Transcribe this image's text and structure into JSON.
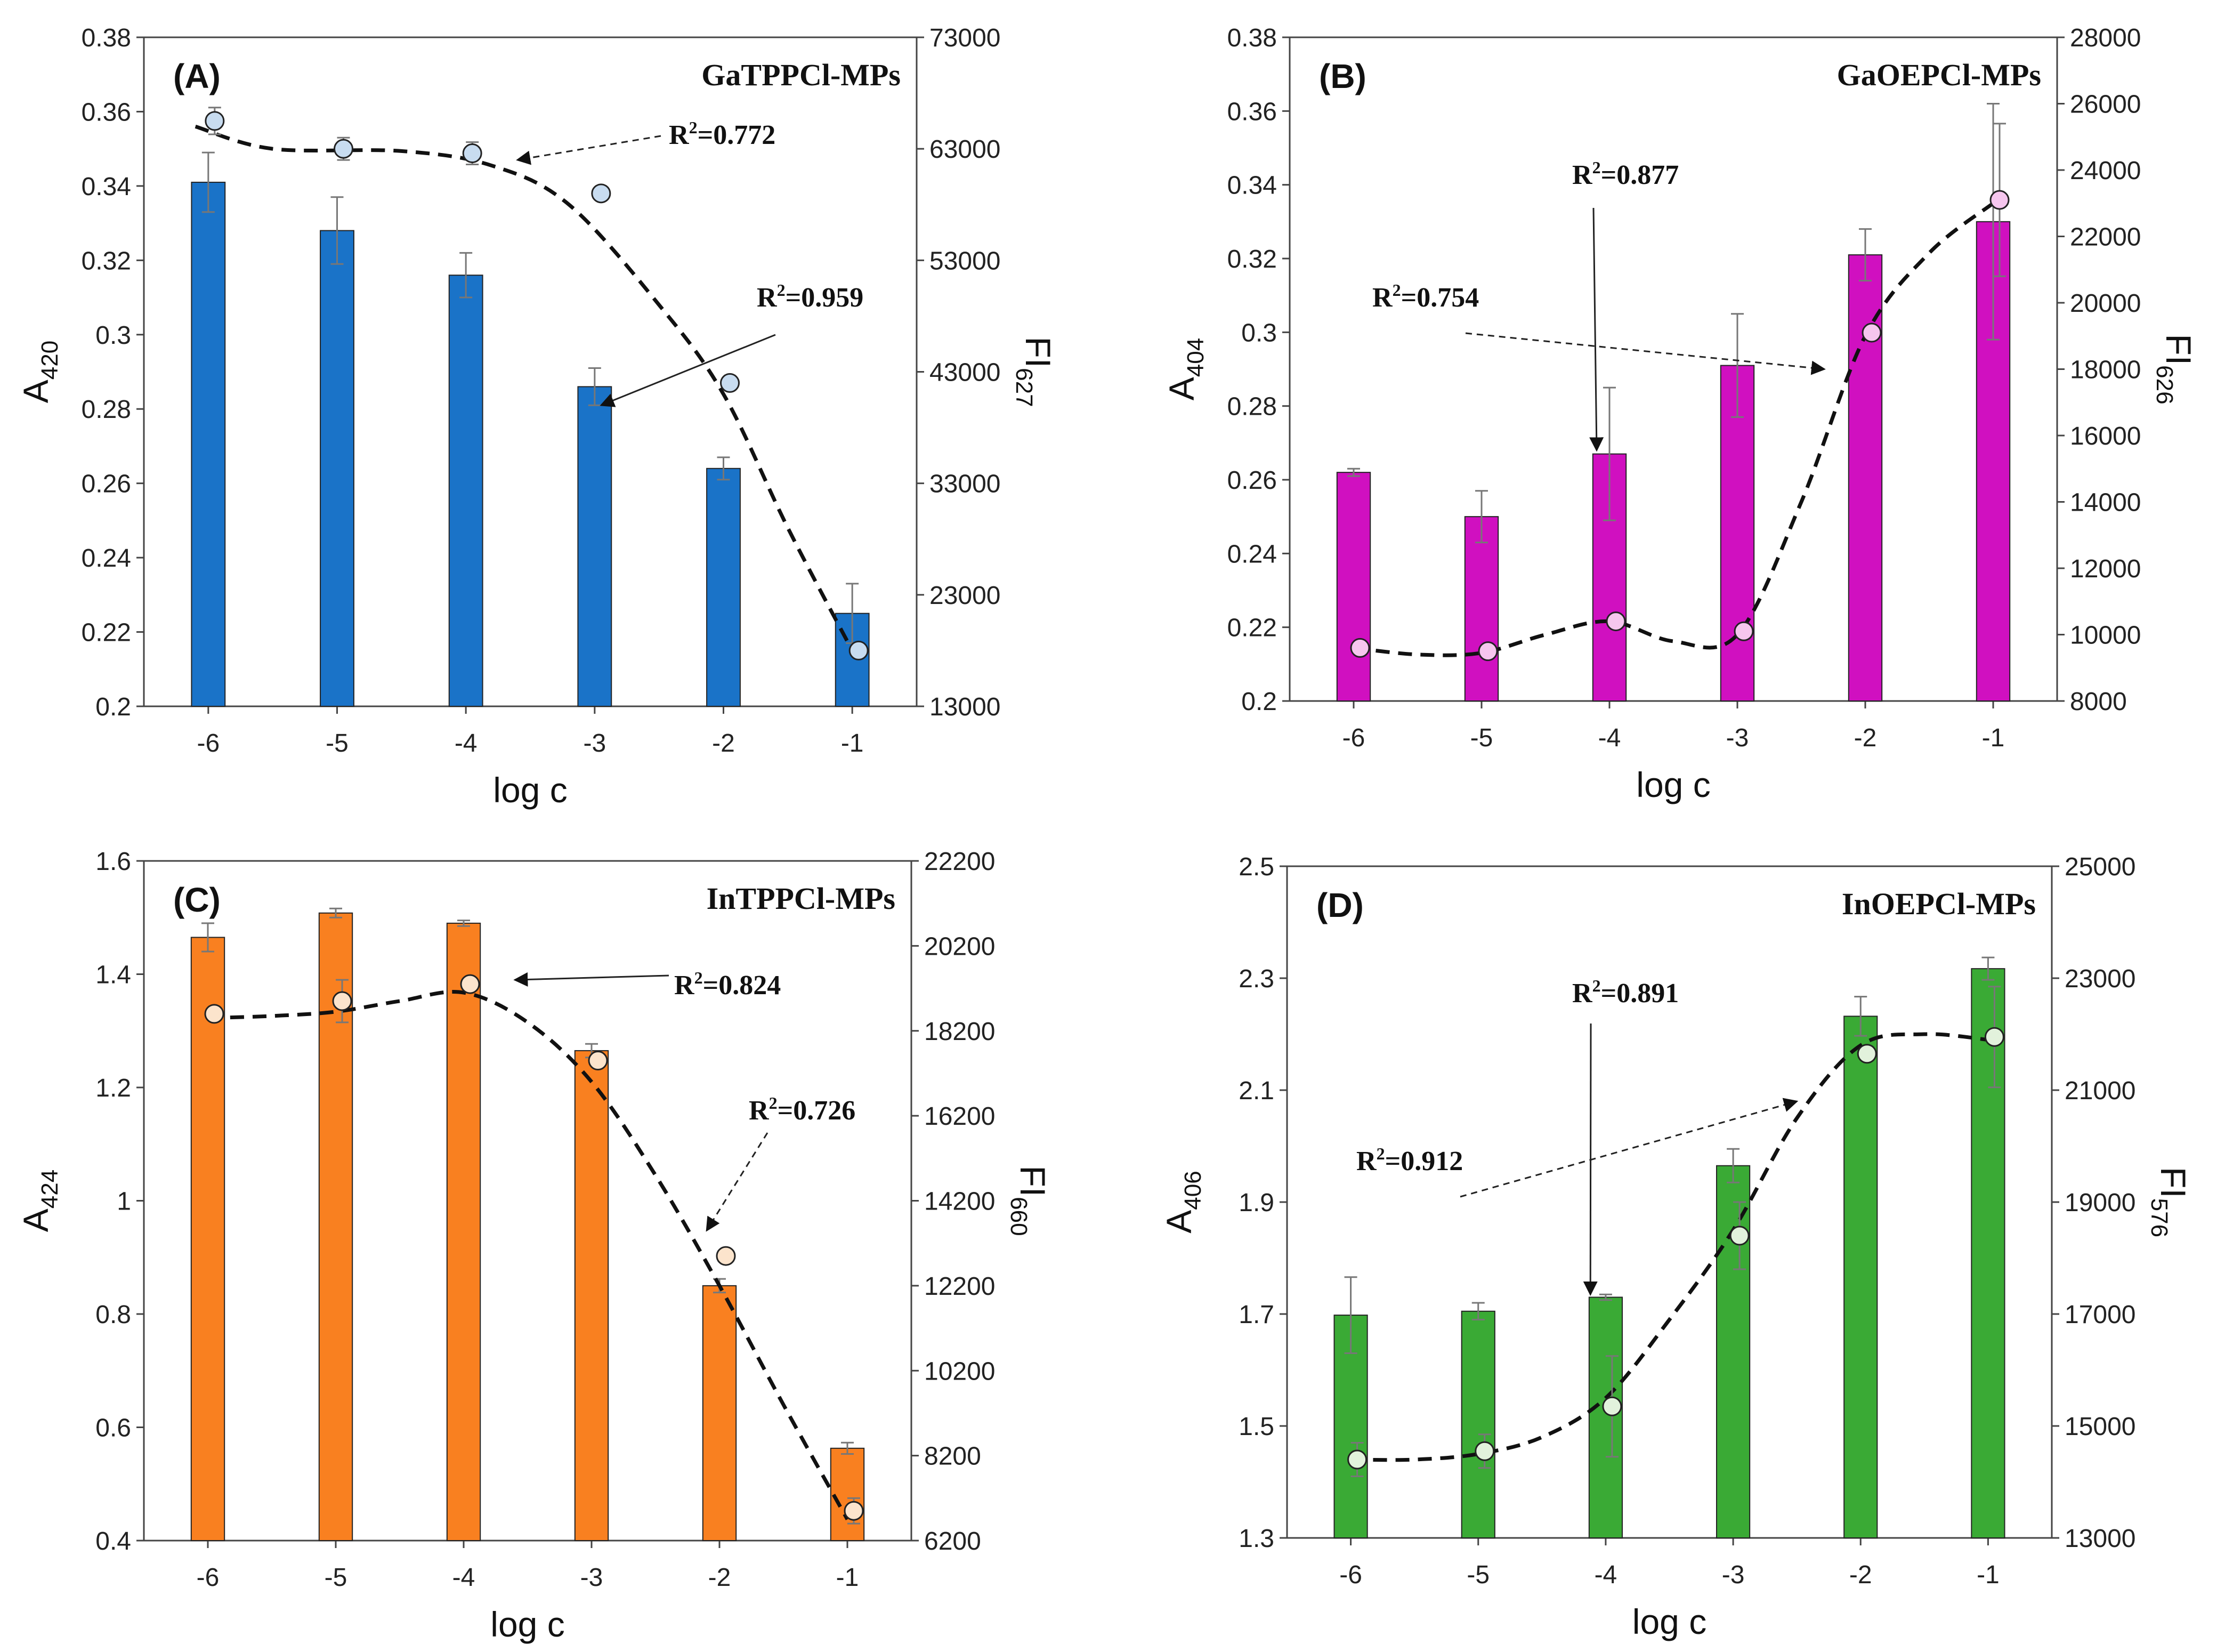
{
  "chart_data": [
    {
      "type": "bar",
      "panel_label": "(A)",
      "title": "GaTPPCl-MPs",
      "xlabel": "log c",
      "ylabel": {
        "main": "A",
        "sub": "420"
      },
      "y2label": {
        "main": "FI",
        "sub": "627"
      },
      "categories": [
        "-6",
        "-5",
        "-4",
        "-3",
        "-2",
        "-1"
      ],
      "ylim": [
        0.2,
        0.38
      ],
      "yticks": [
        "0.2",
        "0.22",
        "0.24",
        "0.26",
        "0.28",
        "0.3",
        "0.32",
        "0.34",
        "0.36",
        "0.38"
      ],
      "y2lim": [
        13000,
        73000
      ],
      "y2ticks": [
        "13000",
        "23000",
        "33000",
        "43000",
        "53000",
        "63000",
        "73000"
      ],
      "bar_color": "#1a73c8",
      "dot_color": "#c8dcf0",
      "series": [
        {
          "name": "A420",
          "axis": "left",
          "kind": "bar",
          "values": [
            0.341,
            0.328,
            0.316,
            0.286,
            0.264,
            0.225
          ],
          "errors": [
            0.008,
            0.009,
            0.006,
            0.005,
            0.003,
            0.008
          ]
        },
        {
          "name": "FI627",
          "axis": "right",
          "kind": "scatter",
          "values": [
            65500,
            63000,
            62600,
            59000,
            42000,
            18000
          ],
          "errors": [
            1200,
            1000,
            1000,
            0,
            0,
            0
          ]
        }
      ],
      "curve": [
        [
          -6.1,
          65000
        ],
        [
          -5.5,
          63000
        ],
        [
          -4.5,
          62800
        ],
        [
          -3.8,
          61500
        ],
        [
          -3.2,
          58000
        ],
        [
          -2.5,
          49000
        ],
        [
          -2,
          41000
        ],
        [
          -1.5,
          29000
        ],
        [
          -1,
          18000
        ]
      ],
      "annotations": [
        {
          "label": "R",
          "sup": "2",
          "value": "=0.772",
          "dashed": true,
          "target": [
            -3.6,
            62000
          ]
        },
        {
          "label": "R",
          "sup": "2",
          "value": "=0.959",
          "dashed": false,
          "target": [
            -2.95,
            0.281
          ]
        }
      ]
    },
    {
      "type": "bar",
      "panel_label": "(B)",
      "title": "GaOEPCl-MPs",
      "xlabel": "log c",
      "ylabel": {
        "main": "A",
        "sub": "404"
      },
      "y2label": {
        "main": "FI",
        "sub": "626"
      },
      "categories": [
        "-6",
        "-5",
        "-4",
        "-3",
        "-2",
        "-1"
      ],
      "ylim": [
        0.2,
        0.38
      ],
      "yticks": [
        "0.2",
        "0.22",
        "0.24",
        "0.26",
        "0.28",
        "0.3",
        "0.32",
        "0.34",
        "0.36",
        "0.38"
      ],
      "y2lim": [
        8000,
        28000
      ],
      "y2ticks": [
        "8000",
        "10000",
        "12000",
        "14000",
        "16000",
        "18000",
        "20000",
        "22000",
        "24000",
        "26000",
        "28000"
      ],
      "bar_color": "#d010c0",
      "dot_color": "#f6c6ee",
      "series": [
        {
          "name": "A404",
          "axis": "left",
          "kind": "bar",
          "values": [
            0.262,
            0.25,
            0.267,
            0.291,
            0.321,
            0.33
          ],
          "errors": [
            0.001,
            0.007,
            0.018,
            0.014,
            0.007,
            0.032
          ]
        },
        {
          "name": "FI626",
          "axis": "right",
          "kind": "scatter",
          "values": [
            9600,
            9500,
            10400,
            10100,
            19100,
            23100
          ],
          "errors": [
            0,
            0,
            0,
            0,
            0,
            2300
          ]
        }
      ],
      "curve": [
        [
          -6,
          9600
        ],
        [
          -5.5,
          9400
        ],
        [
          -5,
          9450
        ],
        [
          -4.5,
          10000
        ],
        [
          -4,
          10400
        ],
        [
          -3.5,
          9800
        ],
        [
          -3,
          10000
        ],
        [
          -2.5,
          14000
        ],
        [
          -2,
          19000
        ],
        [
          -1.5,
          21500
        ],
        [
          -1,
          23000
        ]
      ],
      "annotations": [
        {
          "label": "R",
          "sup": "2",
          "value": "=0.877",
          "dashed": false,
          "target": [
            -4.1,
            0.268
          ]
        },
        {
          "label": "R",
          "sup": "2",
          "value": "=0.754",
          "dashed": true,
          "target": [
            -2.32,
            18000
          ]
        }
      ]
    },
    {
      "type": "bar",
      "panel_label": "(C)",
      "title": "InTPPCl-MPs",
      "xlabel": "log c",
      "ylabel": {
        "main": "A",
        "sub": "424"
      },
      "y2label": {
        "main": "FI",
        "sub": "660"
      },
      "categories": [
        "-6",
        "-5",
        "-4",
        "-3",
        "-2",
        "-1"
      ],
      "ylim": [
        0.4,
        1.6
      ],
      "yticks": [
        "0.4",
        "0.6",
        "0.8",
        "1",
        "1.2",
        "1.4",
        "1.6"
      ],
      "y2lim": [
        6200,
        22200
      ],
      "y2ticks": [
        "6200",
        "8200",
        "10200",
        "12200",
        "14200",
        "16200",
        "18200",
        "20200",
        "22200"
      ],
      "bar_color": "#f98020",
      "dot_color": "#fce4cc",
      "series": [
        {
          "name": "A424",
          "axis": "left",
          "kind": "bar",
          "values": [
            1.465,
            1.508,
            1.49,
            1.265,
            0.85,
            0.563
          ],
          "errors": [
            0.025,
            0.008,
            0.005,
            0.012,
            0.012,
            0.01
          ]
        },
        {
          "name": "FI660",
          "axis": "right",
          "kind": "scatter",
          "values": [
            18600,
            18900,
            19300,
            17500,
            12900,
            6900
          ],
          "errors": [
            0,
            500,
            0,
            0,
            0,
            300
          ]
        }
      ],
      "curve": [
        [
          -6,
          18500
        ],
        [
          -5.5,
          18550
        ],
        [
          -5,
          18650
        ],
        [
          -4.5,
          18900
        ],
        [
          -4,
          19100
        ],
        [
          -3.5,
          18400
        ],
        [
          -3,
          17000
        ],
        [
          -2.5,
          14800
        ],
        [
          -2,
          12200
        ],
        [
          -1.5,
          9400
        ],
        [
          -1,
          6700
        ]
      ],
      "annotations": [
        {
          "label": "R",
          "sup": "2",
          "value": "=0.824",
          "dashed": false,
          "target": [
            -3.6,
            1.39
          ]
        },
        {
          "label": "R",
          "sup": "2",
          "value": "=0.726",
          "dashed": true,
          "target": [
            -2.1,
            13500
          ]
        }
      ]
    },
    {
      "type": "bar",
      "panel_label": "(D)",
      "title": "InOEPCl-MPs",
      "xlabel": "log c",
      "ylabel": {
        "main": "A",
        "sub": "406"
      },
      "y2label": {
        "main": "FI",
        "sub": "576"
      },
      "categories": [
        "-6",
        "-5",
        "-4",
        "-3",
        "-2",
        "-1"
      ],
      "ylim": [
        1.3,
        2.5
      ],
      "yticks": [
        "1.3",
        "1.5",
        "1.7",
        "1.9",
        "2.1",
        "2.3",
        "2.5"
      ],
      "y2lim": [
        13000,
        25000
      ],
      "y2ticks": [
        "13000",
        "15000",
        "17000",
        "19000",
        "21000",
        "23000",
        "25000"
      ],
      "bar_color": "#3aaa35",
      "dot_color": "#e2f2dc",
      "series": [
        {
          "name": "A406",
          "axis": "left",
          "kind": "bar",
          "values": [
            1.698,
            1.705,
            1.73,
            1.965,
            2.232,
            2.317
          ],
          "errors": [
            0.068,
            0.015,
            0.005,
            0.03,
            0.035,
            0.02
          ]
        },
        {
          "name": "FI576",
          "axis": "right",
          "kind": "scatter",
          "values": [
            14400,
            14550,
            15350,
            18400,
            21650,
            21950
          ],
          "errors": [
            300,
            300,
            900,
            600,
            0,
            900
          ]
        }
      ],
      "curve": [
        [
          -6,
          14400
        ],
        [
          -5.5,
          14400
        ],
        [
          -5,
          14500
        ],
        [
          -4.5,
          14800
        ],
        [
          -4,
          15500
        ],
        [
          -3.5,
          16900
        ],
        [
          -3,
          18500
        ],
        [
          -2.5,
          20500
        ],
        [
          -2,
          21800
        ],
        [
          -1.5,
          22000
        ],
        [
          -1,
          21900
        ]
      ],
      "annotations": [
        {
          "label": "R",
          "sup": "2",
          "value": "=0.891",
          "dashed": false,
          "target": [
            -4.12,
            1.735
          ]
        },
        {
          "label": "R",
          "sup": "2",
          "value": "=0.912",
          "dashed": true,
          "target": [
            -2.5,
            20800
          ]
        }
      ]
    }
  ]
}
